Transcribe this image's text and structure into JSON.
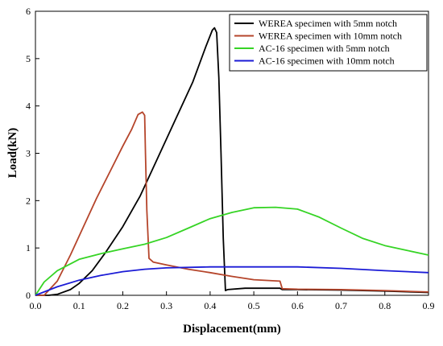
{
  "chart_data": {
    "type": "line",
    "xlabel": "Displacement(mm)",
    "ylabel": "Load(kN)",
    "xlim": [
      0.0,
      0.9
    ],
    "ylim": [
      0,
      6
    ],
    "x_ticks": [
      "0.0",
      "0.1",
      "0.2",
      "0.3",
      "0.4",
      "0.5",
      "0.6",
      "0.7",
      "0.8",
      "0.9"
    ],
    "y_ticks": [
      "0",
      "1",
      "2",
      "3",
      "4",
      "5",
      "6"
    ],
    "grid": false,
    "legend_position": "top-right",
    "series": [
      {
        "name": "WEREA specimen with 5mm notch",
        "color": "#000000",
        "points": [
          [
            0.0,
            0.0
          ],
          [
            0.03,
            0.0
          ],
          [
            0.05,
            0.02
          ],
          [
            0.08,
            0.12
          ],
          [
            0.1,
            0.25
          ],
          [
            0.13,
            0.52
          ],
          [
            0.16,
            0.9
          ],
          [
            0.2,
            1.45
          ],
          [
            0.24,
            2.1
          ],
          [
            0.28,
            2.9
          ],
          [
            0.32,
            3.7
          ],
          [
            0.36,
            4.5
          ],
          [
            0.39,
            5.25
          ],
          [
            0.405,
            5.6
          ],
          [
            0.41,
            5.65
          ],
          [
            0.415,
            5.55
          ],
          [
            0.42,
            4.6
          ],
          [
            0.425,
            3.0
          ],
          [
            0.43,
            1.2
          ],
          [
            0.435,
            0.1
          ],
          [
            0.44,
            0.12
          ],
          [
            0.48,
            0.15
          ],
          [
            0.56,
            0.15
          ],
          [
            0.565,
            0.12
          ],
          [
            0.6,
            0.12
          ],
          [
            0.7,
            0.11
          ],
          [
            0.8,
            0.09
          ],
          [
            0.9,
            0.06
          ]
        ]
      },
      {
        "name": "WEREA specimen with 10mm notch",
        "color": "#b5452b",
        "points": [
          [
            0.0,
            0.0
          ],
          [
            0.02,
            0.0
          ],
          [
            0.05,
            0.3
          ],
          [
            0.08,
            0.85
          ],
          [
            0.11,
            1.45
          ],
          [
            0.14,
            2.05
          ],
          [
            0.17,
            2.6
          ],
          [
            0.2,
            3.15
          ],
          [
            0.22,
            3.5
          ],
          [
            0.235,
            3.82
          ],
          [
            0.245,
            3.87
          ],
          [
            0.25,
            3.8
          ],
          [
            0.252,
            3.0
          ],
          [
            0.255,
            1.8
          ],
          [
            0.26,
            0.78
          ],
          [
            0.27,
            0.7
          ],
          [
            0.3,
            0.64
          ],
          [
            0.35,
            0.55
          ],
          [
            0.4,
            0.48
          ],
          [
            0.45,
            0.4
          ],
          [
            0.5,
            0.33
          ],
          [
            0.56,
            0.3
          ],
          [
            0.565,
            0.14
          ],
          [
            0.6,
            0.13
          ],
          [
            0.7,
            0.12
          ],
          [
            0.8,
            0.1
          ],
          [
            0.9,
            0.07
          ]
        ]
      },
      {
        "name": "AC-16 specimen with 5mm notch",
        "color": "#36d425",
        "points": [
          [
            0.0,
            0.0
          ],
          [
            0.02,
            0.28
          ],
          [
            0.05,
            0.52
          ],
          [
            0.1,
            0.76
          ],
          [
            0.15,
            0.88
          ],
          [
            0.2,
            0.98
          ],
          [
            0.25,
            1.08
          ],
          [
            0.3,
            1.22
          ],
          [
            0.35,
            1.42
          ],
          [
            0.4,
            1.62
          ],
          [
            0.45,
            1.75
          ],
          [
            0.5,
            1.85
          ],
          [
            0.55,
            1.86
          ],
          [
            0.6,
            1.82
          ],
          [
            0.65,
            1.65
          ],
          [
            0.7,
            1.42
          ],
          [
            0.75,
            1.2
          ],
          [
            0.8,
            1.05
          ],
          [
            0.85,
            0.95
          ],
          [
            0.9,
            0.85
          ]
        ]
      },
      {
        "name": "AC-16 specimen with 10mm notch",
        "color": "#1b1bd6",
        "points": [
          [
            0.0,
            0.0
          ],
          [
            0.05,
            0.18
          ],
          [
            0.1,
            0.32
          ],
          [
            0.15,
            0.42
          ],
          [
            0.2,
            0.5
          ],
          [
            0.25,
            0.55
          ],
          [
            0.3,
            0.58
          ],
          [
            0.4,
            0.6
          ],
          [
            0.5,
            0.6
          ],
          [
            0.6,
            0.6
          ],
          [
            0.7,
            0.57
          ],
          [
            0.8,
            0.52
          ],
          [
            0.9,
            0.48
          ]
        ]
      }
    ]
  }
}
